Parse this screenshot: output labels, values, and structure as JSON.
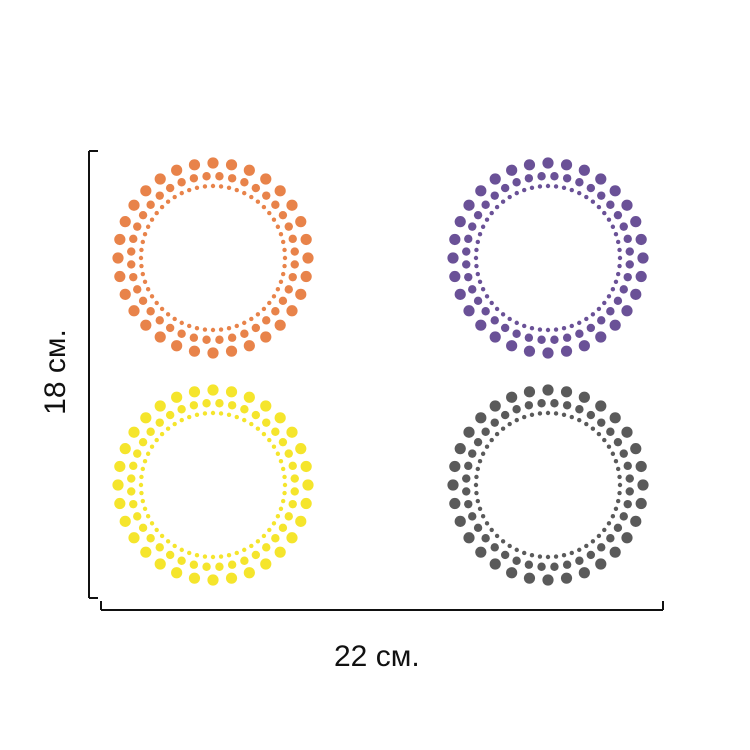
{
  "dimensions": {
    "width_label": "22 см.",
    "height_label": "18 см."
  },
  "sticker_sheet": {
    "stickers": [
      {
        "name": "orange-dotted-ring",
        "color": "#E8834A"
      },
      {
        "name": "purple-dotted-ring",
        "color": "#6A5197"
      },
      {
        "name": "yellow-dotted-ring",
        "color": "#F5E52C"
      },
      {
        "name": "gray-dotted-ring",
        "color": "#5A5A5A"
      }
    ]
  },
  "colors": {
    "line": "#111111",
    "background": "#ffffff"
  }
}
